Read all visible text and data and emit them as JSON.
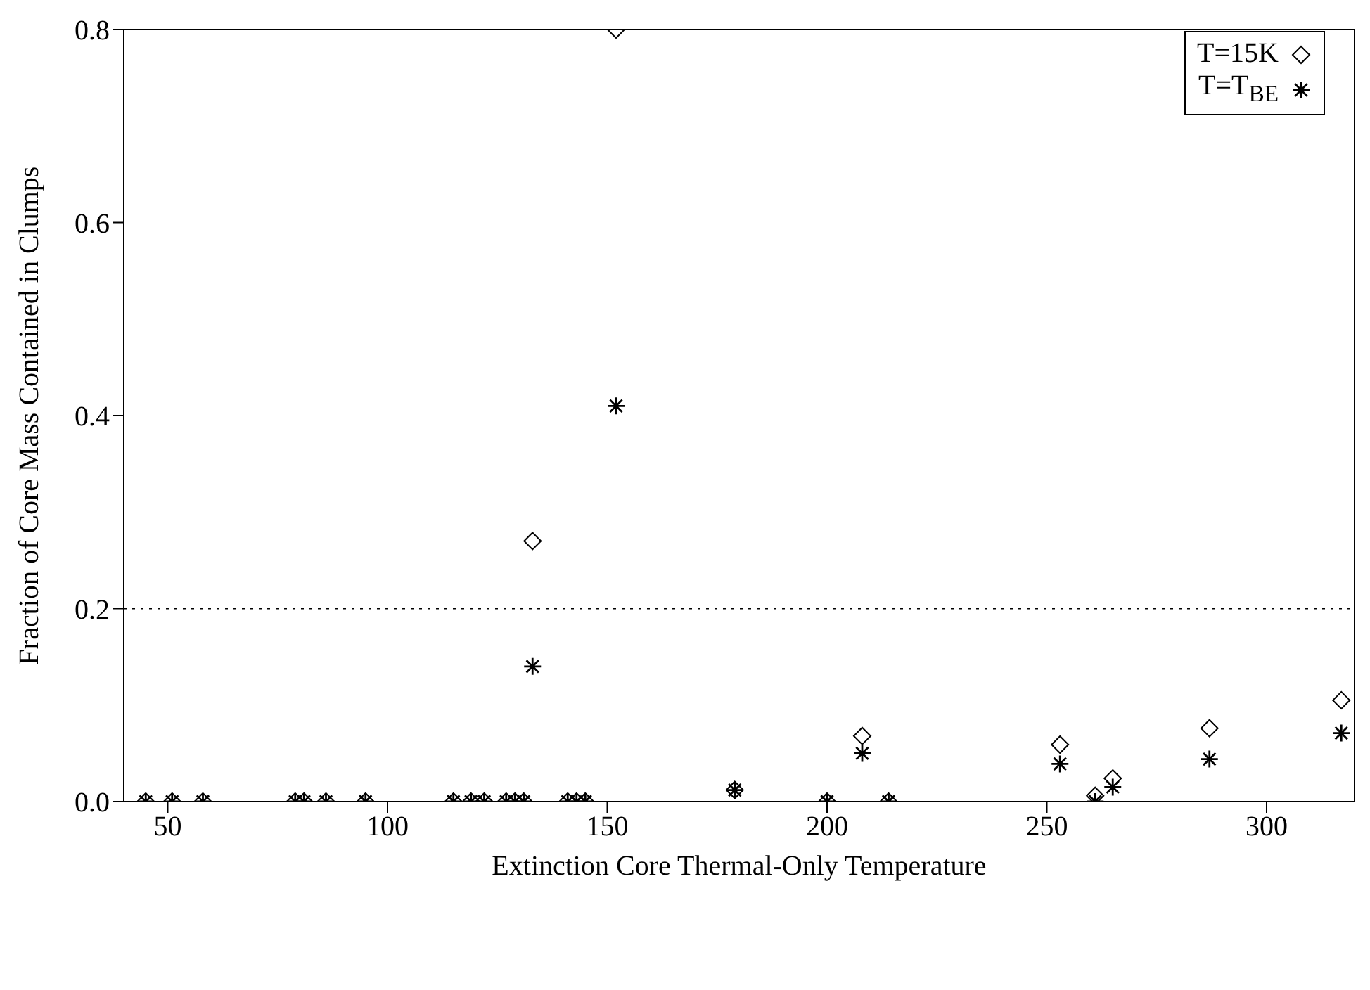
{
  "chart_data": {
    "type": "scatter",
    "xlabel": "Extinction Core Thermal-Only Temperature",
    "ylabel": "Fraction of Core Mass Contained in Clumps",
    "xlim": [
      40,
      320
    ],
    "xticks": [
      50,
      100,
      150,
      200,
      250,
      300
    ],
    "ylim": [
      0,
      0.8
    ],
    "yticks": [
      {
        "value": 0,
        "label": "0.0"
      },
      0.2,
      0.4,
      0.6,
      0.8
    ],
    "legend": "top right",
    "ref_lines": [
      {
        "axis": "y",
        "value": 0.2,
        "line_style": "dotted",
        "color": "#000000"
      }
    ],
    "x": [
      45,
      51,
      58,
      79,
      81,
      86,
      95,
      115,
      119,
      122,
      127,
      129,
      131,
      141,
      143,
      145,
      133,
      152,
      179,
      200,
      208,
      214,
      253,
      261,
      265,
      287,
      317
    ],
    "series": [
      {
        "name": "T=15K",
        "color": "#000000",
        "marker": "diamond",
        "values": [
          0,
          0,
          0,
          0,
          0,
          0,
          0,
          0,
          0,
          0,
          0,
          0,
          0,
          0,
          0,
          0,
          0.27,
          0.8,
          0.012,
          0,
          0.068,
          0,
          0.059,
          0.006,
          0.024,
          0.076,
          0.105
        ]
      },
      {
        "name": "T=T$_{BE}$",
        "color": "#000000",
        "marker": "cross",
        "values": [
          0,
          0,
          0,
          0,
          0,
          0,
          0,
          0,
          0,
          0,
          0,
          0,
          0,
          0,
          0,
          0,
          0.14,
          0.41,
          0.012,
          0,
          0.05,
          0,
          0.039,
          0,
          0.015,
          0.044,
          0.071
        ]
      }
    ]
  }
}
